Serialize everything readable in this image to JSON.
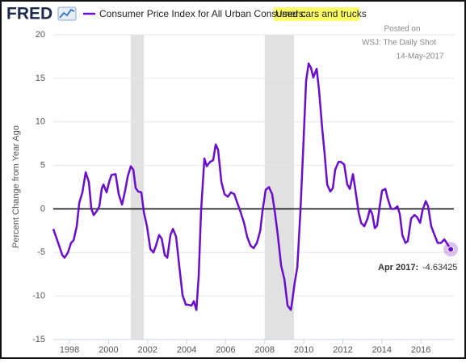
{
  "chart_data": {
    "type": "line",
    "logo": "FRED",
    "title": "Consumer Price Index for All Urban Consumers:",
    "title_highlight": "Used cars and trucks",
    "y_label": "Percent Change from Year Ago",
    "annotations": [
      "Posted on",
      "WSJ: The Daily Shot",
      "14-May-2017"
    ],
    "tooltip_label": "Apr 2017:",
    "x": [
      1997.17,
      1997.42,
      1997.63,
      1997.75,
      1997.92,
      1998.08,
      1998.21,
      1998.37,
      1998.5,
      1998.66,
      1998.83,
      1998.99,
      1999.12,
      1999.24,
      1999.41,
      1999.53,
      1999.65,
      1999.74,
      1999.9,
      2000.03,
      2000.15,
      2000.36,
      2000.52,
      2000.69,
      2000.85,
      2000.98,
      2001.14,
      2001.27,
      2001.39,
      2001.52,
      2001.68,
      2001.81,
      2001.97,
      2002.14,
      2002.3,
      2002.43,
      2002.59,
      2002.72,
      2002.88,
      2003.01,
      2003.17,
      2003.3,
      2003.46,
      2003.63,
      2003.79,
      2003.96,
      2004.08,
      2004.25,
      2004.37,
      2004.5,
      2004.62,
      2004.74,
      2004.91,
      2005.03,
      2005.2,
      2005.36,
      2005.49,
      2005.61,
      2005.78,
      2005.94,
      2006.11,
      2006.27,
      2006.44,
      2006.61,
      2006.77,
      2006.94,
      2007.1,
      2007.27,
      2007.43,
      2007.6,
      2007.77,
      2007.89,
      2008.05,
      2008.22,
      2008.38,
      2008.51,
      2008.67,
      2008.84,
      2009.01,
      2009.17,
      2009.34,
      2009.42,
      2009.54,
      2009.67,
      2009.83,
      2009.96,
      2010.12,
      2010.25,
      2010.37,
      2010.49,
      2010.66,
      2010.78,
      2010.95,
      2011.07,
      2011.2,
      2011.36,
      2011.49,
      2011.61,
      2011.78,
      2011.9,
      2012.07,
      2012.23,
      2012.36,
      2012.52,
      2012.65,
      2012.81,
      2012.94,
      2013.1,
      2013.27,
      2013.39,
      2013.51,
      2013.64,
      2013.76,
      2013.89,
      2014.01,
      2014.18,
      2014.3,
      2014.47,
      2014.63,
      2014.8,
      2014.92,
      2015.05,
      2015.21,
      2015.33,
      2015.5,
      2015.67,
      2015.79,
      2015.96,
      2016.08,
      2016.25,
      2016.37,
      2016.53,
      2016.7,
      2016.86,
      2017.03,
      2017.2,
      2017.32,
      2017.53
    ],
    "series": [
      {
        "color": "#6a0dce",
        "values": [
          -2.3,
          -3.9,
          -5.3,
          -5.6,
          -5.0,
          -3.9,
          -3.6,
          -2.0,
          0.7,
          1.9,
          4.2,
          3.1,
          0,
          -0.7,
          -0.2,
          0.3,
          2.3,
          2.8,
          1.9,
          3.1,
          3.9,
          4.0,
          1.7,
          0.5,
          2.1,
          3.7,
          4.9,
          4.5,
          2.4,
          2.0,
          1.9,
          -0.4,
          -2.0,
          -4.6,
          -5.0,
          -4.2,
          -3.0,
          -3.4,
          -5.3,
          -5.6,
          -3.0,
          -2.3,
          -3.2,
          -6.7,
          -9.9,
          -11.0,
          -11.0,
          -11.1,
          -10.6,
          -11.6,
          -7.6,
          -0.2,
          5.8,
          4.9,
          5.4,
          5.6,
          7.4,
          6.8,
          3.1,
          1.7,
          1.4,
          1.9,
          1.7,
          0.6,
          -0.4,
          -1.6,
          -3.2,
          -4.2,
          -4.5,
          -3.9,
          -2.5,
          -0.2,
          2.2,
          2.5,
          1.7,
          -0.2,
          -3.0,
          -6.5,
          -8.1,
          -11.1,
          -11.6,
          -10.4,
          -8.4,
          -6.7,
          -0.2,
          6.3,
          14.7,
          16.7,
          16.2,
          15.1,
          16.1,
          13.7,
          9.1,
          6.3,
          2.8,
          2.0,
          2.4,
          4.5,
          5.4,
          5.4,
          5.1,
          2.8,
          2.3,
          4.0,
          2.1,
          -0.4,
          -1.6,
          -2.0,
          -1.1,
          0,
          -0.6,
          -2.2,
          -1.9,
          0.3,
          2.1,
          2.3,
          1.2,
          0,
          0,
          0.3,
          -0.6,
          -3.0,
          -3.9,
          -3.7,
          -1.1,
          -0.7,
          -0.9,
          -1.6,
          -0.2,
          0.9,
          0.3,
          -2.0,
          -3.0,
          -3.9,
          -3.9,
          -3.5,
          -3.9,
          -4.63425
        ]
      }
    ],
    "recessions": [
      [
        2001.14,
        2001.81
      ],
      [
        2008.0,
        2009.5
      ]
    ],
    "xlim": [
      1997.17,
      2017.69
    ],
    "xticks": [
      1998,
      2000,
      2002,
      2004,
      2006,
      2008,
      2010,
      2012,
      2014,
      2016
    ],
    "ylim": [
      -15,
      20
    ],
    "yticks": [
      -15,
      -10,
      -5,
      0,
      5,
      10,
      15,
      20
    ],
    "grid": true,
    "zero_line": true
  }
}
